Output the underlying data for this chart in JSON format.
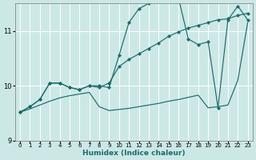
{
  "xlabel": "Humidex (Indice chaleur)",
  "xlim": [
    -0.5,
    23.5
  ],
  "ylim": [
    9.0,
    11.5
  ],
  "yticks": [
    9,
    10,
    11
  ],
  "xticks": [
    0,
    1,
    2,
    3,
    4,
    5,
    6,
    7,
    8,
    9,
    10,
    11,
    12,
    13,
    14,
    15,
    16,
    17,
    18,
    19,
    20,
    21,
    22,
    23
  ],
  "bg_color": "#cce8e6",
  "line_color": "#1a6b6b",
  "line1_x": [
    0,
    1,
    2,
    3,
    4,
    5,
    6,
    7,
    8,
    9,
    10,
    11,
    12,
    13,
    14,
    15,
    16,
    17,
    18,
    19,
    20,
    21,
    22,
    23
  ],
  "line1_y": [
    9.52,
    9.62,
    9.75,
    10.05,
    10.05,
    9.97,
    9.93,
    10.0,
    10.0,
    9.97,
    10.55,
    11.15,
    11.4,
    11.5,
    11.78,
    11.82,
    11.6,
    10.85,
    10.75,
    10.8,
    9.6,
    11.2,
    11.45,
    11.2
  ],
  "line2_x": [
    0,
    1,
    2,
    3,
    4,
    5,
    6,
    7,
    8,
    9,
    10,
    11,
    12,
    13,
    14,
    15,
    16,
    17,
    18,
    19,
    20,
    21,
    22,
    23
  ],
  "line2_y": [
    9.52,
    9.62,
    9.75,
    10.05,
    10.05,
    9.97,
    9.93,
    10.0,
    9.97,
    10.05,
    10.35,
    10.48,
    10.58,
    10.68,
    10.78,
    10.9,
    10.98,
    11.05,
    11.1,
    11.15,
    11.2,
    11.22,
    11.28,
    11.32
  ],
  "line3_x": [
    0,
    1,
    2,
    3,
    4,
    5,
    6,
    7,
    8,
    9,
    10,
    11,
    12,
    13,
    14,
    15,
    16,
    17,
    18,
    19,
    20,
    21,
    22,
    23
  ],
  "line3_y": [
    9.52,
    9.58,
    9.65,
    9.72,
    9.78,
    9.82,
    9.85,
    9.88,
    9.62,
    9.55,
    9.57,
    9.59,
    9.62,
    9.65,
    9.68,
    9.72,
    9.75,
    9.79,
    9.83,
    9.6,
    9.62,
    9.65,
    10.1,
    11.15
  ]
}
